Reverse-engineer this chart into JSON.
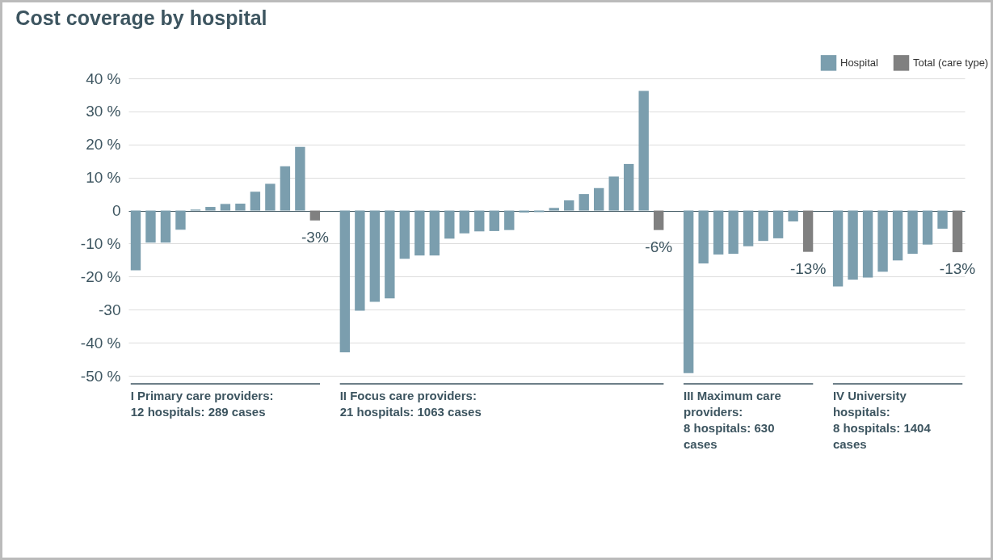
{
  "chart_data": {
    "type": "bar",
    "title": "Cost coverage by hospital",
    "categories": [
      null,
      null,
      null,
      null,
      null,
      null,
      null,
      null,
      null,
      null,
      null,
      null,
      null,
      null,
      null,
      null,
      null,
      null,
      null,
      null,
      null,
      null,
      null,
      null,
      null,
      null,
      null,
      null,
      null,
      null,
      null,
      null,
      null,
      null,
      null,
      null,
      null,
      null,
      null,
      null,
      null,
      null,
      null,
      null,
      null,
      null,
      null,
      null,
      null,
      null,
      null,
      null,
      null,
      null,
      null,
      null
    ],
    "series": [
      {
        "name": "Hospital",
        "color": "#7b9eae",
        "values": [
          -18.1,
          -9.7,
          -9.7,
          -5.8,
          0.3,
          1.1,
          2.0,
          2.1,
          5.7,
          8.1,
          13.4,
          19.3,
          null,
          null,
          -42.9,
          -30.3,
          -27.6,
          -26.6,
          -14.6,
          -13.6,
          -13.6,
          -8.5,
          -6.9,
          -6.3,
          -6.2,
          -5.9,
          -0.6,
          -0.5,
          0.8,
          3.1,
          5.0,
          6.8,
          10.3,
          14.1,
          36.2,
          null,
          null,
          -49.2,
          -16.0,
          -13.3,
          -13.1,
          -10.8,
          -9.2,
          -8.4,
          -3.3,
          null,
          null,
          -23.0,
          -20.9,
          -20.3,
          -18.5,
          -15.1,
          -13.1,
          -10.3,
          -5.5,
          null
        ]
      },
      {
        "name": "Total (care type)",
        "color": "#808080",
        "values": [
          null,
          null,
          null,
          null,
          null,
          null,
          null,
          null,
          null,
          null,
          null,
          null,
          -3.0,
          null,
          null,
          null,
          null,
          null,
          null,
          null,
          null,
          null,
          null,
          null,
          null,
          null,
          null,
          null,
          null,
          null,
          null,
          null,
          null,
          null,
          null,
          -5.9,
          null,
          null,
          null,
          null,
          null,
          null,
          null,
          null,
          null,
          -12.5,
          null,
          null,
          null,
          null,
          null,
          null,
          null,
          null,
          null,
          -12.6
        ],
        "value_labels": [
          null,
          null,
          null,
          null,
          null,
          null,
          null,
          null,
          null,
          null,
          null,
          null,
          "-3%",
          null,
          null,
          null,
          null,
          null,
          null,
          null,
          null,
          null,
          null,
          null,
          null,
          null,
          null,
          null,
          null,
          null,
          null,
          null,
          null,
          null,
          null,
          "-6%",
          null,
          null,
          null,
          null,
          null,
          null,
          null,
          null,
          null,
          "-13%",
          null,
          null,
          null,
          null,
          null,
          null,
          null,
          null,
          null,
          "-13%"
        ]
      }
    ],
    "ylim": [
      -50,
      40
    ],
    "yticks": [
      {
        "value": 40,
        "label": "40 %"
      },
      {
        "value": 30,
        "label": "30 %"
      },
      {
        "value": 20,
        "label": "20 %"
      },
      {
        "value": 10,
        "label": "10 %"
      },
      0,
      {
        "value": -10,
        "label": "-10 %"
      },
      {
        "value": -20,
        "label": "-20 %"
      },
      -30,
      {
        "value": -40,
        "label": "-40 %"
      },
      {
        "value": -50,
        "label": "-50 %"
      }
    ],
    "grid": "y",
    "legend": "top right",
    "annotations": [
      "I Primary care providers:\n12 hospitals: 289 cases",
      "II Focus care providers:\n21 hospitals: 1063 cases",
      "III Maximum care providers:\n8 hospitals: 630 cases",
      "IV University hospitals:\n8 hospitals: 1404 cases"
    ]
  }
}
